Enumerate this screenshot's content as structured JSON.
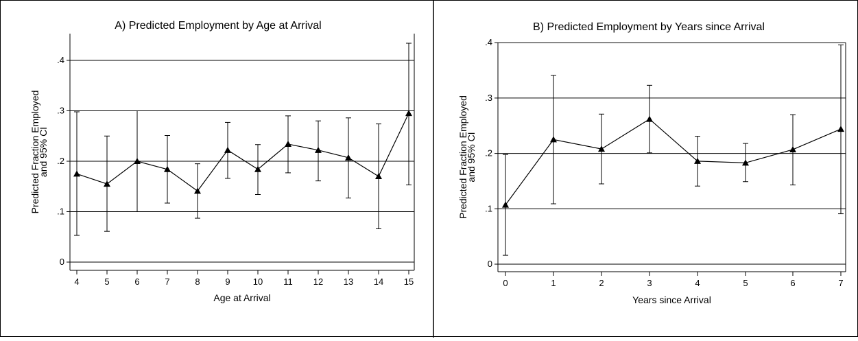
{
  "chart_data": [
    {
      "type": "line",
      "title": "A) Predicted Employment by Age at Arrival",
      "xlabel": "Age at Arrival",
      "ylabel_lines": [
        "Predicted Fraction Employed",
        "and 95% CI"
      ],
      "xlim": [
        4,
        15
      ],
      "ylim": [
        0,
        0.45
      ],
      "x_ticks": [
        4,
        5,
        6,
        7,
        8,
        9,
        10,
        11,
        12,
        13,
        14,
        15
      ],
      "x_tick_labels": [
        "4",
        "5",
        "6",
        "7",
        "8",
        "9",
        "10",
        "11",
        "12",
        "13",
        "14",
        "15"
      ],
      "y_ticks": [
        0,
        0.1,
        0.2,
        0.3,
        0.4
      ],
      "y_tick_labels": [
        "0",
        ".1",
        ".2",
        ".3",
        ".4"
      ],
      "grid": "horizontal",
      "marker": "triangle",
      "series": [
        {
          "x": [
            4,
            5,
            6,
            7,
            8,
            9,
            10,
            11,
            12,
            13,
            14,
            15
          ],
          "y": [
            0.175,
            0.155,
            0.2,
            0.184,
            0.141,
            0.222,
            0.184,
            0.234,
            0.222,
            0.207,
            0.17,
            0.295
          ],
          "lower": [
            0.053,
            0.061,
            0.1,
            0.117,
            0.087,
            0.166,
            0.134,
            0.177,
            0.161,
            0.127,
            0.066,
            0.153
          ],
          "upper": [
            0.298,
            0.25,
            0.3,
            0.251,
            0.195,
            0.277,
            0.233,
            0.29,
            0.28,
            0.286,
            0.274,
            0.434
          ]
        }
      ]
    },
    {
      "type": "line",
      "title": "B) Predicted Employment by Years since Arrival",
      "xlabel": "Years since Arrival",
      "ylabel_lines": [
        "Predicted Fraction Employed",
        "and 95% CI"
      ],
      "xlim": [
        0,
        7
      ],
      "ylim": [
        0,
        0.4
      ],
      "x_ticks": [
        0,
        1,
        2,
        3,
        4,
        5,
        6,
        7
      ],
      "x_tick_labels": [
        "0",
        "1",
        "2",
        "3",
        "4",
        "5",
        "6",
        "7"
      ],
      "y_ticks": [
        0,
        0.1,
        0.2,
        0.3,
        0.4
      ],
      "y_tick_labels": [
        "0",
        ".1",
        ".2",
        ".3",
        ".4"
      ],
      "grid": "horizontal",
      "marker": "triangle",
      "series": [
        {
          "x": [
            0,
            1,
            2,
            3,
            4,
            5,
            6,
            7
          ],
          "y": [
            0.107,
            0.225,
            0.208,
            0.262,
            0.186,
            0.183,
            0.207,
            0.244
          ],
          "lower": [
            0.016,
            0.109,
            0.145,
            0.201,
            0.141,
            0.149,
            0.143,
            0.091
          ],
          "upper": [
            0.198,
            0.341,
            0.271,
            0.323,
            0.231,
            0.218,
            0.27,
            0.396
          ]
        }
      ]
    }
  ]
}
